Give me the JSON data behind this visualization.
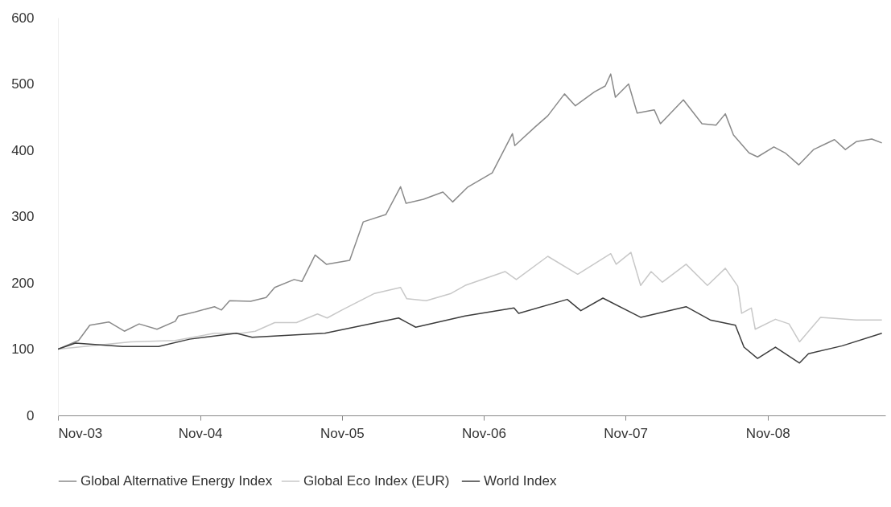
{
  "chart_data": {
    "type": "line",
    "legend": "bottom",
    "grid": false,
    "marker": "none",
    "line_style": "solid",
    "xlim": [
      "2003-11-01",
      "2009-08-31"
    ],
    "ylim": [
      0,
      600
    ],
    "yticks": [
      0,
      100,
      200,
      300,
      400,
      500,
      600
    ],
    "xticks": [
      {
        "value": "2003-11-01",
        "label": "Nov-03"
      },
      {
        "value": "2004-11-01",
        "label": "Nov-04"
      },
      {
        "value": "2005-11-01",
        "label": "Nov-05"
      },
      {
        "value": "2006-11-01",
        "label": "Nov-06"
      },
      {
        "value": "2007-11-01",
        "label": "Nov-07"
      },
      {
        "value": "2008-11-01",
        "label": "Nov-08"
      }
    ],
    "series": [
      {
        "name": "Global Alternative Energy Index",
        "color": "#8a8a8a",
        "x": [
          "2003-11-01",
          "2003-12-24",
          "2004-01-22",
          "2004-03-11",
          "2004-04-20",
          "2004-05-28",
          "2004-07-13",
          "2004-08-29",
          "2004-09-06",
          "2004-10-19",
          "2004-12-08",
          "2004-12-26",
          "2005-01-16",
          "2005-03-11",
          "2005-04-20",
          "2005-05-12",
          "2005-07-01",
          "2005-07-21",
          "2005-08-24",
          "2005-09-22",
          "2005-11-21",
          "2005-12-26",
          "2006-02-22",
          "2006-04-01",
          "2006-04-15",
          "2006-05-30",
          "2006-07-19",
          "2006-08-13",
          "2006-09-20",
          "2006-11-23",
          "2007-01-14",
          "2007-01-20",
          "2007-03-13",
          "2007-04-15",
          "2007-05-28",
          "2007-06-25",
          "2007-08-13",
          "2007-09-10",
          "2007-09-24",
          "2007-10-06",
          "2007-11-09",
          "2007-12-01",
          "2008-01-14",
          "2008-01-30",
          "2008-03-29",
          "2008-05-16",
          "2008-06-21",
          "2008-07-15",
          "2008-08-05",
          "2008-09-14",
          "2008-10-06",
          "2008-11-17",
          "2008-12-16",
          "2009-01-20",
          "2009-02-27",
          "2009-04-22",
          "2009-05-20",
          "2009-06-17",
          "2009-07-27",
          "2009-08-22"
        ],
        "values": [
          100,
          113,
          136,
          141,
          127,
          138,
          130,
          142,
          150,
          156,
          164,
          159,
          173,
          172,
          178,
          193,
          205,
          202,
          242,
          228,
          234,
          292,
          303,
          345,
          320,
          326,
          337,
          322,
          344,
          366,
          425,
          407,
          435,
          452,
          485,
          467,
          488,
          497,
          515,
          480,
          500,
          456,
          461,
          440,
          476,
          440,
          438,
          455,
          423,
          396,
          390,
          405,
          396,
          378,
          401,
          416,
          401,
          413,
          417,
          411
        ]
      },
      {
        "name": "Global Eco Index  (EUR)",
        "color": "#c8c8c8",
        "x": [
          "2003-11-01",
          "2004-05-06",
          "2004-08-29",
          "2004-12-08",
          "2005-02-16",
          "2005-03-23",
          "2005-05-12",
          "2005-07-07",
          "2005-08-30",
          "2005-09-24",
          "2005-11-01",
          "2006-01-24",
          "2006-04-01",
          "2006-04-17",
          "2006-06-06",
          "2006-08-09",
          "2006-09-14",
          "2006-12-26",
          "2007-01-24",
          "2007-04-15",
          "2007-07-01",
          "2007-09-24",
          "2007-10-08",
          "2007-11-15",
          "2007-12-10",
          "2008-01-06",
          "2008-02-04",
          "2008-04-05",
          "2008-05-30",
          "2008-07-15",
          "2008-08-16",
          "2008-08-26",
          "2008-09-20",
          "2008-09-30",
          "2008-11-21",
          "2008-12-26",
          "2009-01-22",
          "2009-03-17",
          "2009-06-17",
          "2009-08-22"
        ],
        "values": [
          100,
          111,
          113,
          124,
          124,
          127,
          140,
          140,
          153,
          147,
          159,
          184,
          193,
          176,
          173,
          184,
          196,
          217,
          205,
          240,
          213,
          244,
          228,
          246,
          196,
          217,
          201,
          228,
          196,
          222,
          195,
          154,
          162,
          130,
          145,
          138,
          111,
          148,
          144,
          144
        ]
      },
      {
        "name": "World Index",
        "color": "#3c3c3c",
        "x": [
          "2003-11-01",
          "2003-12-16",
          "2004-04-16",
          "2004-07-17",
          "2004-10-05",
          "2005-02-02",
          "2005-03-15",
          "2005-09-18",
          "2006-03-27",
          "2006-05-10",
          "2006-09-14",
          "2007-01-18",
          "2007-01-30",
          "2007-06-04",
          "2007-07-09",
          "2007-09-04",
          "2007-12-10",
          "2008-04-05",
          "2008-06-06",
          "2008-08-10",
          "2008-09-01",
          "2008-10-06",
          "2008-11-21",
          "2009-01-22",
          "2009-02-14",
          "2009-05-12",
          "2009-08-22"
        ],
        "values": [
          100,
          109,
          104,
          104,
          115,
          124,
          118,
          124,
          147,
          133,
          150,
          162,
          154,
          175,
          158,
          177,
          148,
          164,
          144,
          136,
          103,
          86,
          103,
          79,
          93,
          105,
          124
        ]
      }
    ]
  }
}
